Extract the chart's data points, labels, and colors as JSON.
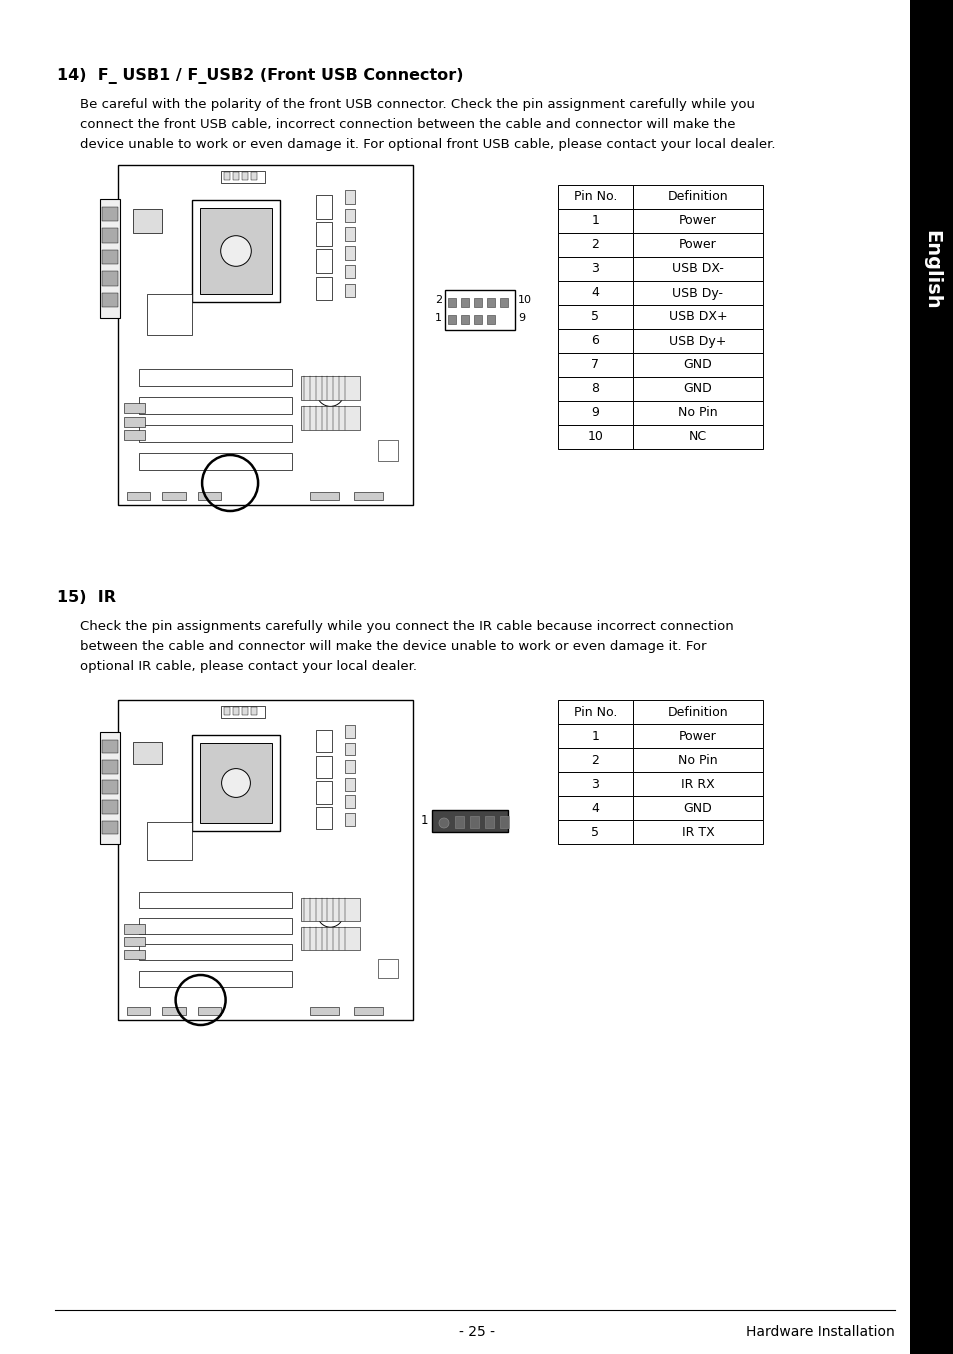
{
  "title14": "14)  F_ USB1 / F_USB2 (Front USB Connector)",
  "body14_lines": [
    "Be careful with the polarity of the front USB connector. Check the pin assignment carefully while you",
    "connect the front USB cable, incorrect connection between the cable and connector will make the",
    "device unable to work or even damage it. For optional front USB cable, please contact your local dealer."
  ],
  "table14_headers": [
    "Pin No.",
    "Definition"
  ],
  "table14_rows": [
    [
      "1",
      "Power"
    ],
    [
      "2",
      "Power"
    ],
    [
      "3",
      "USB DX-"
    ],
    [
      "4",
      "USB Dy-"
    ],
    [
      "5",
      "USB DX+"
    ],
    [
      "6",
      "USB Dy+"
    ],
    [
      "7",
      "GND"
    ],
    [
      "8",
      "GND"
    ],
    [
      "9",
      "No Pin"
    ],
    [
      "10",
      "NC"
    ]
  ],
  "title15": "15)  IR",
  "body15_lines": [
    "Check the pin assignments carefully while you connect the IR cable because incorrect connection",
    "between the cable and connector will make the device unable to work or even damage it. For",
    "optional IR cable, please contact your local dealer."
  ],
  "table15_headers": [
    "Pin No.",
    "Definition"
  ],
  "table15_rows": [
    [
      "1",
      "Power"
    ],
    [
      "2",
      "No Pin"
    ],
    [
      "3",
      "IR RX"
    ],
    [
      "4",
      "GND"
    ],
    [
      "5",
      "IR TX"
    ]
  ],
  "sidebar_text": "English",
  "footer_left": "- 25 -",
  "footer_right": "Hardware Installation",
  "bg_color": "#ffffff",
  "text_color": "#000000",
  "sidebar_bg": "#000000",
  "sidebar_text_color": "#ffffff"
}
